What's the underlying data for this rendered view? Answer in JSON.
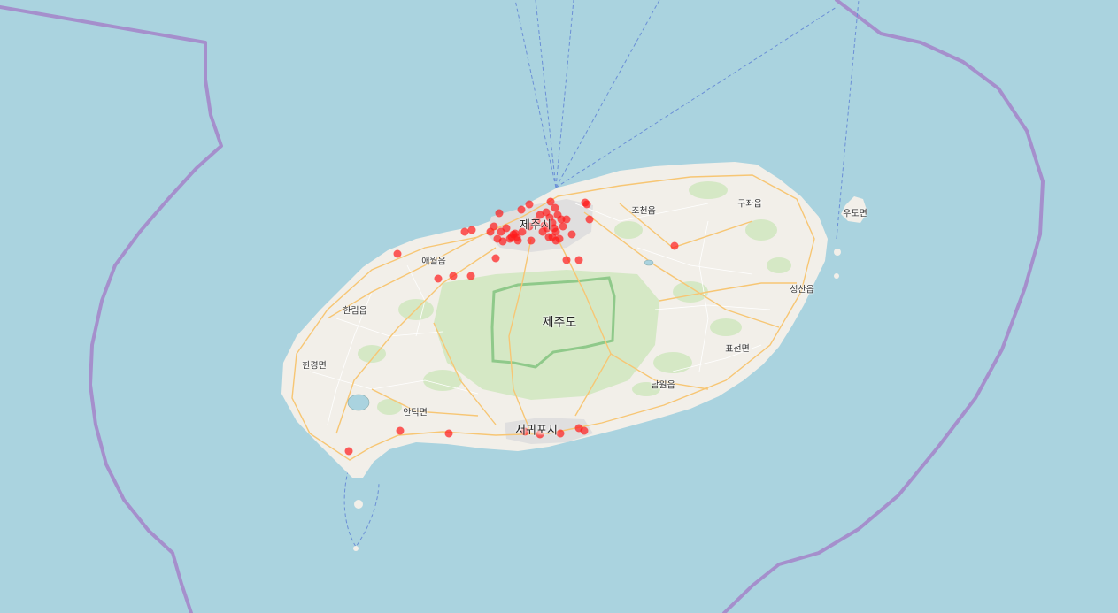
{
  "map": {
    "colors": {
      "sea": "#aad3df",
      "land": "#f2efe9",
      "park": "#d5e8c5",
      "park_border": "#8fc98a",
      "urban": "#e0dfdf",
      "road": "#f7c674",
      "minor_road": "#ffffff",
      "boundary": "#a58fcc",
      "ferry": "#6b8fd6",
      "marker": "#ff1a1a"
    },
    "labels": {
      "island": "제주도",
      "jeju_city": "제주시",
      "seogwipo": "서귀포시",
      "aewol": "애월읍",
      "hallim": "한림읍",
      "hangyeong": "한경면",
      "andeok": "안덕면",
      "jocheon": "조천읍",
      "gujwa": "구좌읍",
      "udo": "우도면",
      "seongsan": "성산읍",
      "pyoseon": "표선면",
      "namwon": "남원읍"
    }
  }
}
